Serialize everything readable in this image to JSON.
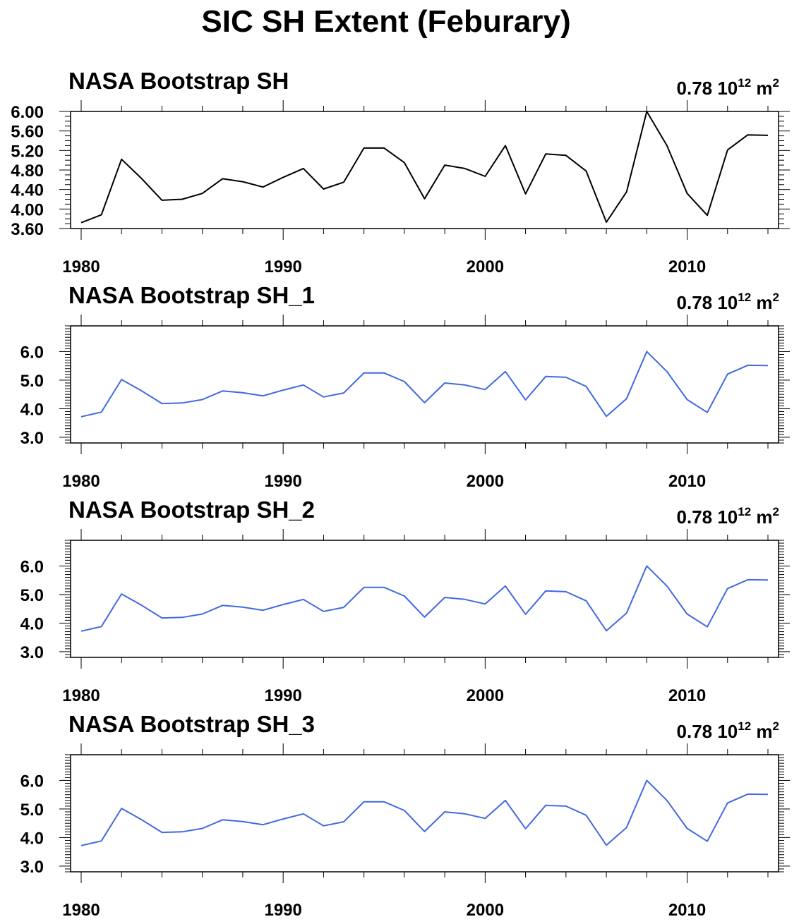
{
  "main_title": "SIC SH Extent (Feburary)",
  "chart_data": [
    {
      "type": "line",
      "title": "NASA Bootstrap SH",
      "annotation": {
        "value": "0.78 10",
        "exponent": "12",
        "unit": "m",
        "unit_exponent": "2"
      },
      "xlabel": "",
      "ylabel": "",
      "xlim": [
        1980,
        2014.5
      ],
      "ylim": [
        3.6,
        6.0
      ],
      "yticks": [
        "3.60",
        "4.00",
        "4.40",
        "4.80",
        "5.20",
        "5.60",
        "6.00"
      ],
      "xticks": [
        "1980",
        "1990",
        "2000",
        "2010"
      ],
      "line_color": "#000000",
      "x": [
        1980,
        1981,
        1982,
        1983,
        1984,
        1985,
        1986,
        1987,
        1988,
        1989,
        1990,
        1991,
        1992,
        1993,
        1994,
        1995,
        1996,
        1997,
        1998,
        1999,
        2000,
        2001,
        2002,
        2003,
        2004,
        2005,
        2006,
        2007,
        2008,
        2009,
        2010,
        2011,
        2012,
        2013,
        2014
      ],
      "values": [
        3.72,
        3.88,
        5.02,
        4.62,
        4.18,
        4.2,
        4.32,
        4.62,
        4.56,
        4.45,
        4.65,
        4.83,
        4.41,
        4.55,
        5.25,
        5.25,
        4.95,
        4.21,
        4.9,
        4.83,
        4.67,
        5.3,
        4.31,
        5.13,
        5.1,
        4.78,
        3.73,
        4.35,
        6.0,
        5.3,
        4.32,
        3.87,
        5.21,
        5.52,
        5.51
      ]
    },
    {
      "type": "line",
      "title": "NASA Bootstrap SH_1",
      "annotation": {
        "value": "0.78 10",
        "exponent": "12",
        "unit": "m",
        "unit_exponent": "2"
      },
      "xlabel": "",
      "ylabel": "",
      "xlim": [
        1980,
        2014.5
      ],
      "ylim": [
        2.8,
        6.9
      ],
      "yticks": [
        "3.0",
        "4.0",
        "5.0",
        "6.0"
      ],
      "xticks": [
        "1980",
        "1990",
        "2000",
        "2010"
      ],
      "line_color": "#4169e1",
      "x": [
        1980,
        1981,
        1982,
        1983,
        1984,
        1985,
        1986,
        1987,
        1988,
        1989,
        1990,
        1991,
        1992,
        1993,
        1994,
        1995,
        1996,
        1997,
        1998,
        1999,
        2000,
        2001,
        2002,
        2003,
        2004,
        2005,
        2006,
        2007,
        2008,
        2009,
        2010,
        2011,
        2012,
        2013,
        2014
      ],
      "values": [
        3.72,
        3.88,
        5.02,
        4.62,
        4.18,
        4.2,
        4.32,
        4.62,
        4.56,
        4.45,
        4.65,
        4.83,
        4.41,
        4.55,
        5.25,
        5.25,
        4.95,
        4.21,
        4.9,
        4.83,
        4.67,
        5.3,
        4.31,
        5.13,
        5.1,
        4.78,
        3.73,
        4.35,
        6.0,
        5.3,
        4.32,
        3.87,
        5.21,
        5.52,
        5.51
      ]
    },
    {
      "type": "line",
      "title": "NASA Bootstrap SH_2",
      "annotation": {
        "value": "0.78 10",
        "exponent": "12",
        "unit": "m",
        "unit_exponent": "2"
      },
      "xlabel": "",
      "ylabel": "",
      "xlim": [
        1980,
        2014.5
      ],
      "ylim": [
        2.8,
        6.9
      ],
      "yticks": [
        "3.0",
        "4.0",
        "5.0",
        "6.0"
      ],
      "xticks": [
        "1980",
        "1990",
        "2000",
        "2010"
      ],
      "line_color": "#4169e1",
      "x": [
        1980,
        1981,
        1982,
        1983,
        1984,
        1985,
        1986,
        1987,
        1988,
        1989,
        1990,
        1991,
        1992,
        1993,
        1994,
        1995,
        1996,
        1997,
        1998,
        1999,
        2000,
        2001,
        2002,
        2003,
        2004,
        2005,
        2006,
        2007,
        2008,
        2009,
        2010,
        2011,
        2012,
        2013,
        2014
      ],
      "values": [
        3.72,
        3.88,
        5.02,
        4.62,
        4.18,
        4.2,
        4.32,
        4.62,
        4.56,
        4.45,
        4.65,
        4.83,
        4.41,
        4.55,
        5.25,
        5.25,
        4.95,
        4.21,
        4.9,
        4.83,
        4.67,
        5.3,
        4.31,
        5.13,
        5.1,
        4.78,
        3.73,
        4.35,
        6.0,
        5.3,
        4.32,
        3.87,
        5.21,
        5.52,
        5.51
      ]
    },
    {
      "type": "line",
      "title": "NASA Bootstrap SH_3",
      "annotation": {
        "value": "0.78 10",
        "exponent": "12",
        "unit": "m",
        "unit_exponent": "2"
      },
      "xlabel": "",
      "ylabel": "",
      "xlim": [
        1980,
        2014.5
      ],
      "ylim": [
        2.8,
        6.9
      ],
      "yticks": [
        "3.0",
        "4.0",
        "5.0",
        "6.0"
      ],
      "xticks": [
        "1980",
        "1990",
        "2000",
        "2010"
      ],
      "line_color": "#4169e1",
      "x": [
        1980,
        1981,
        1982,
        1983,
        1984,
        1985,
        1986,
        1987,
        1988,
        1989,
        1990,
        1991,
        1992,
        1993,
        1994,
        1995,
        1996,
        1997,
        1998,
        1999,
        2000,
        2001,
        2002,
        2003,
        2004,
        2005,
        2006,
        2007,
        2008,
        2009,
        2010,
        2011,
        2012,
        2013,
        2014
      ],
      "values": [
        3.72,
        3.88,
        5.02,
        4.62,
        4.18,
        4.2,
        4.32,
        4.62,
        4.56,
        4.45,
        4.65,
        4.83,
        4.41,
        4.55,
        5.25,
        5.25,
        4.95,
        4.21,
        4.9,
        4.83,
        4.67,
        5.3,
        4.31,
        5.13,
        5.1,
        4.78,
        3.73,
        4.35,
        6.0,
        5.3,
        4.32,
        3.87,
        5.21,
        5.52,
        5.51
      ]
    }
  ]
}
